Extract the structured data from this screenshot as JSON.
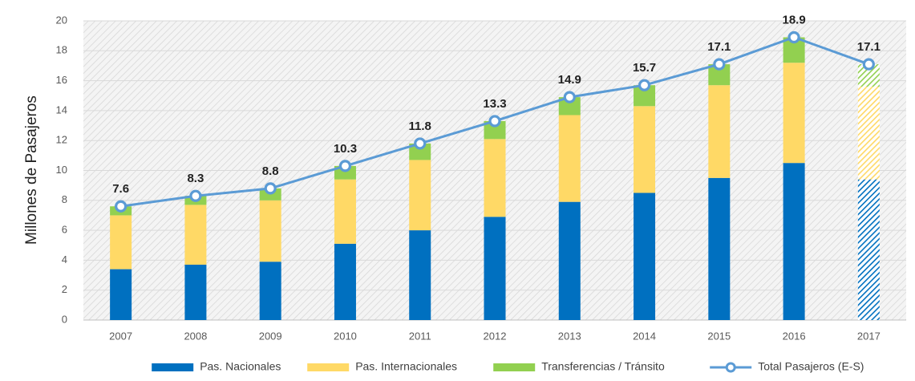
{
  "chart_data": {
    "type": "bar",
    "stacked": true,
    "y_axis_label": "Millones de Pasajeros",
    "categories": [
      "2007",
      "2008",
      "2009",
      "2010",
      "2011",
      "2012",
      "2013",
      "2014",
      "2015",
      "2016",
      "2017"
    ],
    "hatched": [
      false,
      false,
      false,
      false,
      false,
      false,
      false,
      false,
      false,
      false,
      true
    ],
    "series": [
      {
        "name": "Pas. Nacionales",
        "type": "bar",
        "color": "#0070c0",
        "values": [
          3.4,
          3.7,
          3.9,
          5.1,
          6.0,
          6.9,
          7.9,
          8.5,
          9.5,
          10.5,
          9.4
        ]
      },
      {
        "name": "Pas. Internacionales",
        "type": "bar",
        "color": "#ffd966",
        "values": [
          3.6,
          4.0,
          4.1,
          4.3,
          4.7,
          5.2,
          5.8,
          5.8,
          6.2,
          6.7,
          6.2
        ]
      },
      {
        "name": "Transferencias / Tránsito",
        "type": "bar",
        "color": "#92d050",
        "values": [
          0.6,
          0.6,
          0.8,
          0.9,
          1.1,
          1.2,
          1.2,
          1.4,
          1.4,
          1.7,
          1.5
        ]
      },
      {
        "name": "Total Pasajeros (E-S)",
        "type": "line",
        "color": "#5b9bd5",
        "values": [
          7.6,
          8.3,
          8.8,
          10.3,
          11.8,
          13.3,
          14.9,
          15.7,
          17.1,
          18.9,
          17.1
        ]
      }
    ],
    "ylim": [
      0,
      20
    ],
    "yticks": [
      0,
      2,
      4,
      6,
      8,
      10,
      12,
      14,
      16,
      18,
      20
    ],
    "grid": true,
    "legend": "bottom"
  }
}
